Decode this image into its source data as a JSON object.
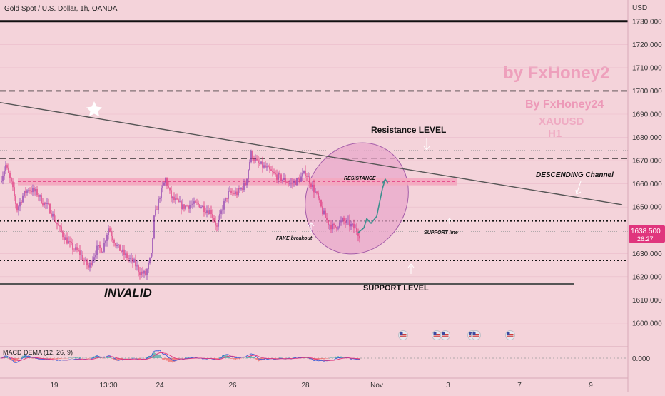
{
  "header": {
    "symbol_title": "Gold Spot / U.S. Dollar, 1h, OANDA",
    "currency": "USD"
  },
  "colors": {
    "background": "#f4d3da",
    "up_candle": "#8e3dae",
    "down_candle": "#e0357d",
    "zone_fill": "#f4a7bf",
    "circle_fill": "#e9a8cb",
    "circle_stroke": "#a35aa8",
    "projection": "#3e8f8e",
    "price_tag": "#e0357d",
    "macd_line": "#3b5bd8",
    "signal_line": "#e0357d",
    "hist_pos": "#26a69a",
    "hist_neg": "#ef5350"
  },
  "watermarks": {
    "main": "by FxHoney2",
    "secondary": "By FxHoney24",
    "pair": "XAUUSD",
    "timeframe": "H1"
  },
  "annotations": {
    "resistance_level": "Resistance LEVEL",
    "resistance": "RESISTANCE",
    "descending_channel": "DESCENDING Channel",
    "fake_breakout": "FAKE breakout",
    "support_line": "SUPPORT line",
    "support_level": "SUPPORT LEVEL",
    "invalid": "INVALID"
  },
  "price_tag": {
    "price": "1638.500",
    "countdown": "26:27"
  },
  "macd": {
    "label": "MACD DEMA (12, 26, 9)",
    "zero_label": "0.000"
  },
  "chart_data": {
    "type": "candlestick",
    "title": "Gold Spot / U.S. Dollar, 1h, OANDA",
    "y_unit": "USD",
    "ylim": [
      1591,
      1737
    ],
    "y_ticks": [
      1600,
      1610,
      1620,
      1630,
      1640,
      1650,
      1660,
      1670,
      1680,
      1690,
      1700,
      1710,
      1720,
      1730
    ],
    "y_tick_labels": [
      "1600.000",
      "1610.000",
      "1620.000",
      "1630.000",
      "1640.000",
      "1650.000",
      "1660.000",
      "1670.000",
      "1680.000",
      "1690.000",
      "1700.000",
      "1710.000",
      "1720.000",
      "1730.000"
    ],
    "x_ticks": [
      "19",
      "13:30",
      "24",
      "26",
      "28",
      "Nov",
      "3",
      "7",
      "9"
    ],
    "x_tick_index": [
      38,
      76,
      112,
      163,
      214,
      264,
      314,
      364,
      414
    ],
    "price_path": [
      [
        0,
        1661
      ],
      [
        4,
        1668
      ],
      [
        8,
        1660
      ],
      [
        12,
        1649
      ],
      [
        16,
        1655
      ],
      [
        20,
        1658
      ],
      [
        26,
        1656
      ],
      [
        30,
        1652
      ],
      [
        34,
        1650
      ],
      [
        38,
        1645
      ],
      [
        44,
        1638
      ],
      [
        50,
        1633
      ],
      [
        56,
        1630
      ],
      [
        62,
        1624
      ],
      [
        68,
        1632
      ],
      [
        72,
        1632
      ],
      [
        76,
        1641
      ],
      [
        82,
        1633
      ],
      [
        88,
        1629
      ],
      [
        94,
        1626
      ],
      [
        98,
        1622
      ],
      [
        102,
        1621
      ],
      [
        106,
        1629
      ],
      [
        108,
        1645
      ],
      [
        112,
        1655
      ],
      [
        116,
        1662
      ],
      [
        120,
        1654
      ],
      [
        124,
        1652
      ],
      [
        128,
        1650
      ],
      [
        134,
        1651
      ],
      [
        140,
        1651
      ],
      [
        144,
        1649
      ],
      [
        148,
        1648
      ],
      [
        152,
        1641
      ],
      [
        156,
        1650
      ],
      [
        160,
        1656
      ],
      [
        166,
        1656
      ],
      [
        172,
        1660
      ],
      [
        176,
        1673
      ],
      [
        180,
        1669
      ],
      [
        186,
        1667
      ],
      [
        192,
        1664
      ],
      [
        198,
        1662
      ],
      [
        204,
        1660
      ],
      [
        210,
        1662
      ],
      [
        214,
        1665
      ],
      [
        218,
        1660
      ],
      [
        222,
        1655
      ],
      [
        226,
        1648
      ],
      [
        230,
        1643
      ],
      [
        234,
        1641
      ],
      [
        240,
        1644
      ],
      [
        244,
        1643
      ],
      [
        250,
        1640
      ],
      [
        252,
        1638
      ]
    ],
    "levels": [
      {
        "name": "top",
        "price": 1730,
        "style": "solid-thick"
      },
      {
        "name": "upper-dashed",
        "price": 1700,
        "style": "dashed"
      },
      {
        "name": "resistance",
        "price": 1671,
        "style": "dashed"
      },
      {
        "name": "support-line",
        "price": 1644,
        "style": "dotted"
      },
      {
        "name": "lower-dotted",
        "price": 1627,
        "style": "dotted"
      },
      {
        "name": "support-level",
        "price": 1617,
        "style": "solid-thick"
      }
    ],
    "resistance_zone": [
      1660,
      1662
    ],
    "trendline": {
      "from": [
        0,
        1695
      ],
      "to": [
        436,
        1651
      ]
    },
    "projection": [
      [
        251,
        1639
      ],
      [
        255,
        1641
      ],
      [
        257,
        1645
      ],
      [
        260,
        1643
      ],
      [
        264,
        1646
      ],
      [
        268,
        1658
      ],
      [
        270,
        1662
      ]
    ],
    "macd_zero": 0.0,
    "macd_zero_label": "0.000"
  }
}
